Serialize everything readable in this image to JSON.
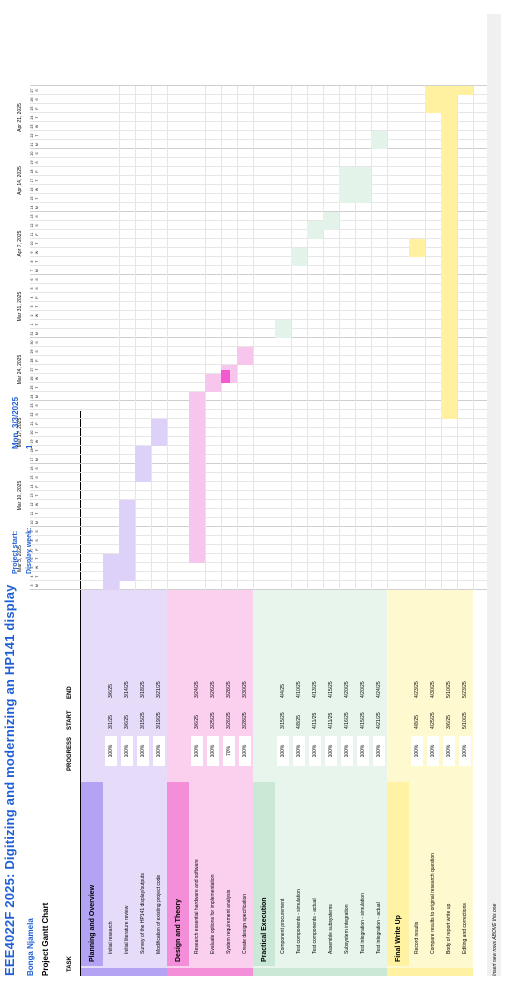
{
  "header": {
    "title": "EEE4022F 2025: Digitizing and modernizing an HP141 display",
    "author": "Bonga Njamela",
    "subtitle": "Project Gantt Chart",
    "project_start_label": "Project start:",
    "project_start_value": "Mon, 3/3/2025",
    "display_week_label": "Display week:",
    "display_week_value": "1"
  },
  "columns": {
    "task": "TASK",
    "progress": "PROGRESS",
    "start": "START",
    "end": "END"
  },
  "weeks": [
    "Mar 3, 2025",
    "Mar 10, 2025",
    "Mar 17, 2025",
    "Mar 24, 2025",
    "Mar 31, 2025",
    "Apr 7, 2025",
    "Apr 14, 2025",
    "Apr 21, 2025"
  ],
  "day_numbers": [
    "3",
    "4",
    "5",
    "6",
    "7",
    "8",
    "9",
    "10",
    "11",
    "12",
    "13",
    "14",
    "15",
    "16",
    "17",
    "18",
    "19",
    "20",
    "21",
    "22",
    "23",
    "24",
    "25",
    "26",
    "27",
    "28",
    "29",
    "30",
    "31",
    "1",
    "2",
    "3",
    "4",
    "5",
    "6",
    "7",
    "8",
    "9",
    "10",
    "11",
    "12",
    "13",
    "14",
    "15",
    "16",
    "17",
    "18",
    "19",
    "20",
    "21",
    "22",
    "23",
    "24",
    "25",
    "26",
    "27"
  ],
  "day_letters": [
    "M",
    "T",
    "W",
    "T",
    "F",
    "S",
    "S",
    "M",
    "T",
    "W",
    "T",
    "F",
    "S",
    "S",
    "M",
    "T",
    "W",
    "T",
    "F",
    "S",
    "S",
    "M",
    "T",
    "W",
    "T",
    "F",
    "S",
    "S",
    "M",
    "T",
    "W",
    "T",
    "F",
    "S",
    "S",
    "M",
    "T",
    "W",
    "T",
    "F",
    "S",
    "S",
    "M",
    "T",
    "W",
    "T",
    "F",
    "S",
    "S",
    "M",
    "T",
    "W",
    "T",
    "F",
    "S",
    "S"
  ],
  "colors": {
    "planning_header": "#b4a3f2",
    "planning_row": "#e6dcfa",
    "planning_bar": "#ddd1f9",
    "design_header": "#f48ed8",
    "design_row": "#fbd0ef",
    "design_bar": "#f8c6ec",
    "design_bar_dark": "#f45ad0",
    "exec_header": "#c9e8d6",
    "exec_row": "#e7f5ec",
    "exec_bar": "#e3f3ea",
    "writeup_header": "#fff3a3",
    "writeup_row": "#fff9cf",
    "writeup_bar": "#fff1a0",
    "title": "#1f5fd6"
  },
  "sections": [
    {
      "name": "Planning and Overview",
      "theme": "planning",
      "tasks": [
        {
          "name": "Initial research",
          "progress": "100%",
          "start": "3/1/25",
          "end": "3/6/25",
          "s": 0,
          "d": 4
        },
        {
          "name": "Initial literature review",
          "progress": "100%",
          "start": "3/6/25",
          "end": "3/14/25",
          "s": 1,
          "d": 9
        },
        {
          "name": "Survey of the HP141 display/outputs",
          "progress": "100%",
          "start": "3/15/25",
          "end": "3/18/25",
          "s": 12,
          "d": 4
        },
        {
          "name": "Modification of existing project code",
          "progress": "100%",
          "start": "3/19/25",
          "end": "3/21/25",
          "s": 16,
          "d": 3
        }
      ]
    },
    {
      "name": "Design and Theory",
      "theme": "design",
      "tasks": [
        {
          "name": "Research essential hardware and software",
          "progress": "100%",
          "start": "3/6/25",
          "end": "3/24/25",
          "s": 3,
          "d": 19
        },
        {
          "name": "Evaluate options for implementation",
          "progress": "100%",
          "start": "3/25/25",
          "end": "3/26/25",
          "s": 22,
          "d": 2
        },
        {
          "name": "System requirement analysis",
          "progress": "70%",
          "start": "3/26/25",
          "end": "3/28/25",
          "s": 23,
          "d": 2,
          "p": 0.7
        },
        {
          "name": "Create design specification",
          "progress": "100%",
          "start": "3/28/25",
          "end": "3/30/25",
          "s": 25,
          "d": 2
        }
      ]
    },
    {
      "name": "Practical Execution",
      "theme": "exec",
      "tasks": [
        {
          "name": "Component procurement",
          "progress": "100%",
          "start": "3/15/25",
          "end": "4/4/25",
          "s": 28,
          "d": 2
        },
        {
          "name": "Test components - simulation",
          "progress": "100%",
          "start": "4/8/25",
          "end": "4/10/25",
          "s": 36,
          "d": 2
        },
        {
          "name": "Test components - actual",
          "progress": "100%",
          "start": "4/11/25",
          "end": "4/13/25",
          "s": 39,
          "d": 2
        },
        {
          "name": "Assemble subsystems",
          "progress": "100%",
          "start": "4/11/25",
          "end": "4/15/25",
          "s": 40,
          "d": 2
        },
        {
          "name": "Subsystem integration",
          "progress": "100%",
          "start": "4/16/25",
          "end": "4/20/25",
          "s": 43,
          "d": 4
        },
        {
          "name": "Test integration - simulation",
          "progress": "100%",
          "start": "4/15/25",
          "end": "4/20/25",
          "s": 43,
          "d": 4
        },
        {
          "name": "Test integration - actual",
          "progress": "100%",
          "start": "4/21/25",
          "end": "4/24/25",
          "s": 49,
          "d": 2
        }
      ]
    },
    {
      "name": "Final Write Up",
      "theme": "writeup",
      "tasks": [
        {
          "name": "Record results",
          "progress": "100%",
          "start": "4/8/25",
          "end": "4/23/25",
          "s": 37,
          "d": 2
        },
        {
          "name": "Compare results to original research question",
          "progress": "100%",
          "start": "4/25/25",
          "end": "4/30/25",
          "s": 53,
          "d": 3
        },
        {
          "name": "Body of report write up",
          "progress": "100%",
          "start": "3/6/25",
          "end": "5/10/25",
          "s": 19,
          "d": 37
        },
        {
          "name": "Editing and corrections",
          "progress": "100%",
          "start": "5/10/25",
          "end": "5/23/25",
          "s": 55,
          "d": 1
        }
      ]
    }
  ],
  "footer": "Insert new rows ABOVE this one"
}
